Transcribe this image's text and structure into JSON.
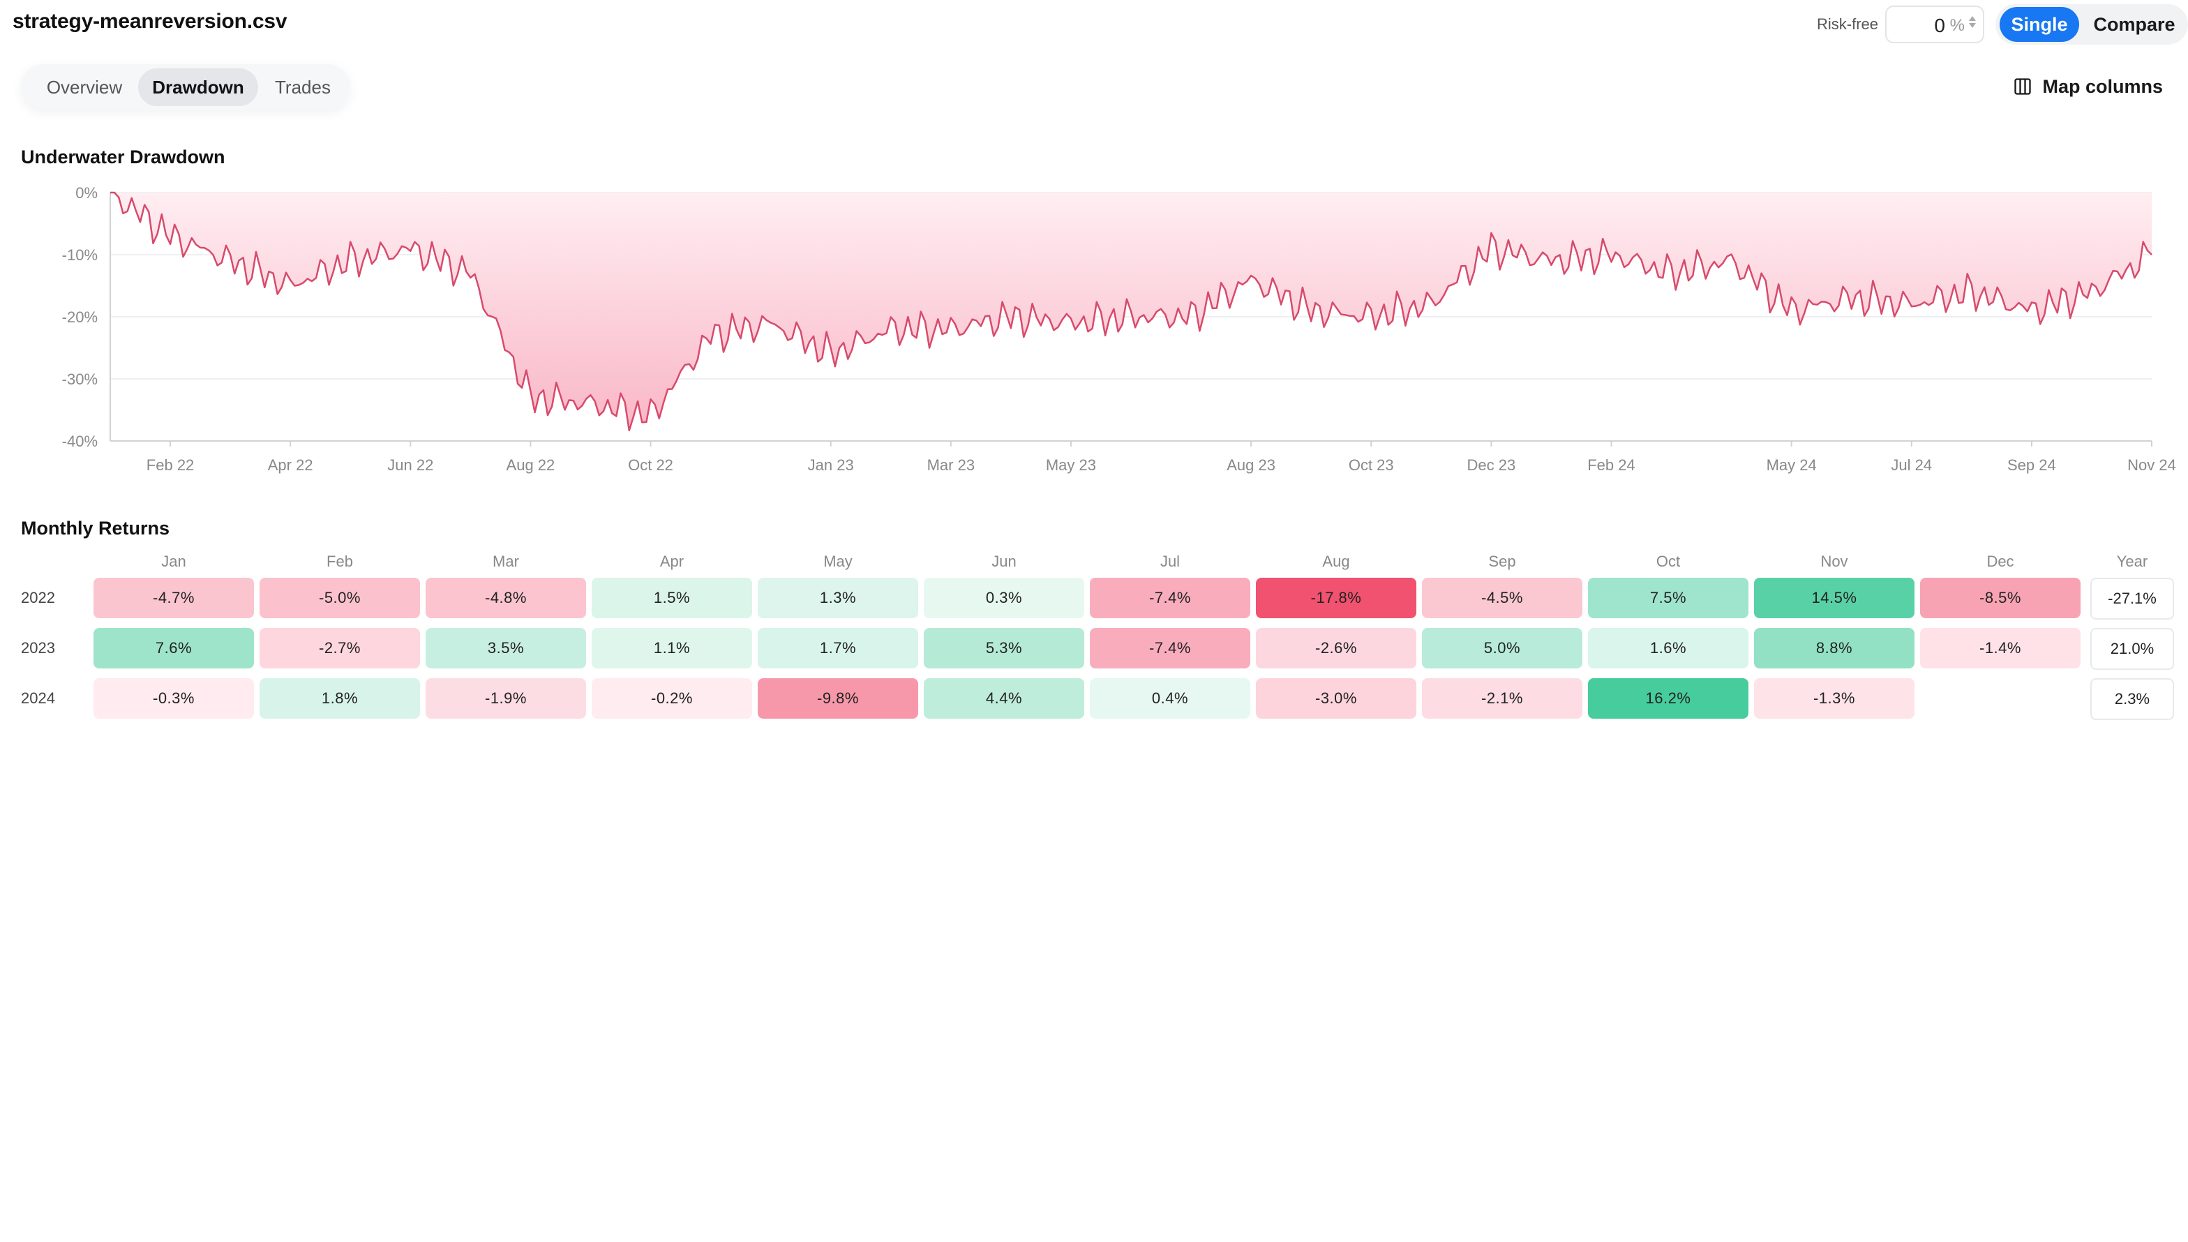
{
  "header": {
    "file_name": "strategy-meanreversion.csv",
    "risk_free_label": "Risk-free",
    "risk_free_value": "0",
    "risk_free_unit": "%",
    "mode_single": "Single",
    "mode_compare": "Compare"
  },
  "tabs": [
    {
      "label": "Overview",
      "active": false
    },
    {
      "label": "Drawdown",
      "active": true
    },
    {
      "label": "Trades",
      "active": false
    }
  ],
  "map_columns": {
    "label": "Map columns",
    "icon": "columns-icon"
  },
  "colors": {
    "accent": "#1877f2",
    "drawdown_line": "#d84a6b",
    "drawdown_fill_top": "#ffeef2",
    "drawdown_fill_bottom": "#f9b6c6",
    "positive_strong": "#35c795",
    "negative_strong": "#f0506e"
  },
  "drawdown_section": {
    "title": "Underwater Drawdown"
  },
  "chart_data": {
    "type": "area",
    "x": [
      "Jan 22",
      "Feb 22",
      "Mar 22",
      "Apr 22",
      "May 22",
      "Jun 22",
      "Jul 22",
      "Aug 22",
      "Sep 22",
      "Oct 22",
      "Nov 22",
      "Dec 22",
      "Jan 23",
      "Feb 23",
      "Mar 23",
      "Apr 23",
      "May 23",
      "Jun 23",
      "Jul 23",
      "Aug 23",
      "Sep 23",
      "Oct 23",
      "Nov 23",
      "Dec 23",
      "Jan 24",
      "Feb 24",
      "Mar 24",
      "Apr 24",
      "May 24",
      "Jun 24",
      "Jul 24",
      "Aug 24",
      "Sep 24",
      "Oct 24",
      "Nov 24"
    ],
    "y": [
      0,
      -7,
      -11,
      -15,
      -11,
      -9,
      -13,
      -33,
      -34,
      -36,
      -23,
      -21,
      -26,
      -22,
      -22,
      -20,
      -21,
      -20,
      -20,
      -14,
      -19,
      -20,
      -18,
      -9,
      -11,
      -10,
      -13,
      -11,
      -19,
      -17,
      -18,
      -16,
      -19,
      -16,
      -10
    ],
    "x_ticks": [
      "Feb 22",
      "Apr 22",
      "Jun 22",
      "Aug 22",
      "Oct 22",
      "Jan 23",
      "Mar 23",
      "May 23",
      "Aug 23",
      "Oct 23",
      "Dec 23",
      "Feb 24",
      "May 24",
      "Jul 24",
      "Sep 24",
      "Nov 24"
    ],
    "y_ticks": [
      "0%",
      "-10%",
      "-20%",
      "-30%",
      "-40%"
    ],
    "ylim": [
      -40,
      0
    ],
    "grid": true
  },
  "monthly_returns": {
    "title": "Monthly Returns",
    "months": [
      "Jan",
      "Feb",
      "Mar",
      "Apr",
      "May",
      "Jun",
      "Jul",
      "Aug",
      "Sep",
      "Oct",
      "Nov",
      "Dec"
    ],
    "year_header": "Year",
    "rows": [
      {
        "year": "2022",
        "values": [
          "-4.7%",
          "-5.0%",
          "-4.8%",
          "1.5%",
          "1.3%",
          "0.3%",
          "-7.4%",
          "-17.8%",
          "-4.5%",
          "7.5%",
          "14.5%",
          "-8.5%"
        ],
        "total": "-27.1%"
      },
      {
        "year": "2023",
        "values": [
          "7.6%",
          "-2.7%",
          "3.5%",
          "1.1%",
          "1.7%",
          "5.3%",
          "-7.4%",
          "-2.6%",
          "5.0%",
          "1.6%",
          "8.8%",
          "-1.4%"
        ],
        "total": "21.0%"
      },
      {
        "year": "2024",
        "values": [
          "-0.3%",
          "1.8%",
          "-1.9%",
          "-0.2%",
          "-9.8%",
          "4.4%",
          "0.4%",
          "-3.0%",
          "-2.1%",
          "16.2%",
          "-1.3%",
          ""
        ],
        "total": "2.3%"
      }
    ]
  }
}
